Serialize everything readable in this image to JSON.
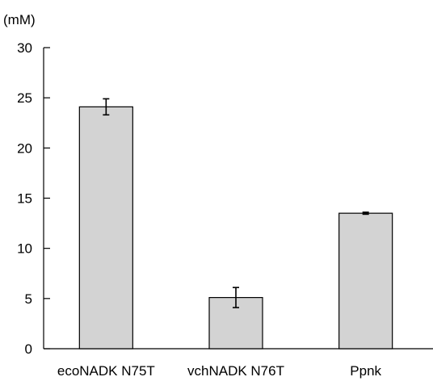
{
  "chart_data": {
    "type": "bar",
    "ylabel": "(mM)",
    "categories": [
      "ecoNADK N75T",
      "vchNADK N76T",
      "Ppnk"
    ],
    "values": [
      24.1,
      5.1,
      13.5
    ],
    "error": [
      0.8,
      1.0,
      0.1
    ],
    "ylim": [
      0,
      30
    ],
    "yticks": [
      0,
      5,
      10,
      15,
      20,
      25,
      30
    ],
    "yticklabels": [
      "0",
      "5",
      "10",
      "15",
      "20",
      "25",
      "30"
    ],
    "grid": false,
    "bar_color": "#d3d3d3",
    "edge_color": "#000000"
  }
}
